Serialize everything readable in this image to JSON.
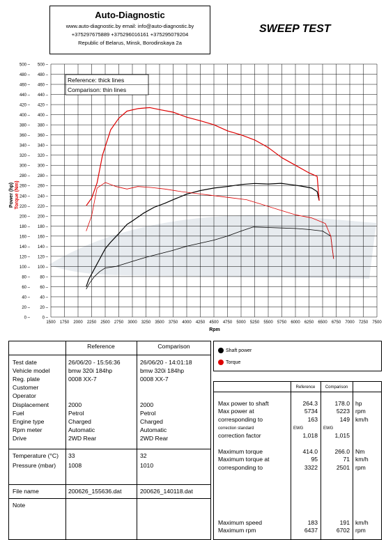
{
  "header": {
    "company": "Auto-Diagnostic",
    "web_email": "www.auto-diagnostic.by     email: info@auto-diagnostic.by",
    "phones": "+375297675889  +375296016161  +375295079204",
    "address": "Republic of Belarus, Minsk, Borodinskaya 2a",
    "test_title": "SWEEP TEST"
  },
  "chart_data": {
    "type": "line",
    "xlabel": "Rpm",
    "ylabel_power": "Power (hp)",
    "ylabel_torque": "Torque (Nm)",
    "xlim": [
      1500,
      7500
    ],
    "ylim": [
      0,
      500
    ],
    "x_ticks": [
      1500,
      1750,
      2000,
      2250,
      2500,
      2750,
      3000,
      3250,
      3500,
      3750,
      4000,
      4250,
      4500,
      4750,
      5000,
      5250,
      5500,
      5750,
      6000,
      6250,
      6500,
      6750,
      7000,
      7250,
      7500
    ],
    "y_ticks": [
      0,
      20,
      40,
      60,
      80,
      100,
      120,
      140,
      160,
      180,
      200,
      220,
      240,
      260,
      280,
      300,
      320,
      340,
      360,
      380,
      400,
      420,
      440,
      460,
      480,
      500
    ],
    "grid": true,
    "notes": [
      "Reference: thick lines",
      "Comparison: thin lines"
    ],
    "legend": [
      {
        "label": "Shaft power",
        "color": "#000000"
      },
      {
        "label": "Torque",
        "color": "#dd0000"
      }
    ],
    "series": [
      {
        "name": "Shaft power",
        "run": "Reference",
        "color": "#000000",
        "x": [
          2150,
          2200,
          2300,
          2400,
          2500,
          2600,
          2750,
          2900,
          3000,
          3200,
          3400,
          3600,
          3750,
          4000,
          4250,
          4500,
          4750,
          5000,
          5250,
          5500,
          5734,
          5900,
          6100,
          6300,
          6400,
          6437
        ],
        "y": [
          60,
          75,
          95,
          115,
          135,
          148,
          165,
          183,
          190,
          205,
          217,
          225,
          232,
          243,
          250,
          255,
          258,
          262,
          264,
          263,
          264.3,
          262,
          259,
          255,
          248,
          230
        ]
      },
      {
        "name": "Shaft power",
        "run": "Comparison",
        "color": "#000000",
        "x": [
          2150,
          2200,
          2300,
          2400,
          2500,
          2700,
          3000,
          3250,
          3500,
          3750,
          4000,
          4250,
          4500,
          4750,
          5000,
          5223,
          5500,
          5750,
          6000,
          6250,
          6500,
          6650,
          6702
        ],
        "y": [
          55,
          65,
          80,
          90,
          97,
          100,
          110,
          118,
          125,
          132,
          140,
          146,
          152,
          160,
          170,
          178,
          177,
          176,
          175,
          173,
          170,
          160,
          115
        ]
      },
      {
        "name": "Torque",
        "run": "Reference",
        "color": "#dd0000",
        "x": [
          2150,
          2250,
          2350,
          2450,
          2600,
          2750,
          2900,
          3100,
          3322,
          3500,
          3750,
          4000,
          4250,
          4500,
          4750,
          5000,
          5250,
          5500,
          5750,
          6000,
          6250,
          6400,
          6437
        ],
        "y": [
          220,
          235,
          265,
          320,
          370,
          393,
          407,
          412,
          414,
          410,
          405,
          395,
          388,
          380,
          368,
          360,
          350,
          335,
          315,
          300,
          285,
          278,
          230
        ]
      },
      {
        "name": "Torque",
        "run": "Comparison",
        "color": "#dd0000",
        "x": [
          2150,
          2250,
          2350,
          2501,
          2700,
          2900,
          3100,
          3350,
          3600,
          3900,
          4200,
          4500,
          4800,
          5100,
          5400,
          5700,
          6000,
          6300,
          6550,
          6650,
          6702
        ],
        "y": [
          170,
          200,
          255,
          266,
          258,
          253,
          258,
          256,
          253,
          248,
          244,
          240,
          236,
          232,
          222,
          212,
          202,
          196,
          185,
          160,
          115
        ]
      }
    ]
  },
  "table_left": {
    "col_ref": "Reference",
    "col_cmp": "Comparison",
    "rows1": [
      {
        "label": "Test date",
        "ref": "26/06/20 - 15:56:36",
        "cmp": "26/06/20 - 14:01:18"
      },
      {
        "label": "Vehicle model",
        "ref": "bmw 320i 184hp",
        "cmp": "bmw 320i 184hp"
      },
      {
        "label": "Reg. plate",
        "ref": "0008 XX-7",
        "cmp": "0008 XX-7"
      },
      {
        "label": "Customer",
        "ref": "",
        "cmp": ""
      },
      {
        "label": "Operator",
        "ref": "",
        "cmp": ""
      },
      {
        "label": "Displacement",
        "ref": "2000",
        "cmp": "2000"
      },
      {
        "label": "Fuel",
        "ref": "Petrol",
        "cmp": "Petrol"
      },
      {
        "label": "Engine type",
        "ref": "Charged",
        "cmp": "Charged"
      },
      {
        "label": "Rpm meter",
        "ref": "Automatic",
        "cmp": "Automatic"
      },
      {
        "label": "Drive",
        "ref": "2WD Rear",
        "cmp": "2WD Rear"
      }
    ],
    "rows2": [
      {
        "label": "Temperature (°C)",
        "ref": "33",
        "cmp": "32"
      },
      {
        "label": "Pressure (mbar)",
        "ref": "1008",
        "cmp": "1010"
      }
    ],
    "file": {
      "label": "File name",
      "ref": "200626_155636.dat",
      "cmp": "200626_140118.dat"
    },
    "note_label": "Note"
  },
  "table_right": {
    "col_ref": "Reference",
    "col_cmp": "Comparison",
    "rows": [
      {
        "label": "Max power to shaft",
        "ref": "264.3",
        "cmp": "178.0",
        "unit": "hp"
      },
      {
        "label": "Max power at",
        "ref": "5734",
        "cmp": "5223",
        "unit": "rpm"
      },
      {
        "label": "corresponding to",
        "ref": "163",
        "cmp": "149",
        "unit": "km/h"
      },
      {
        "label": "correction standard",
        "ref": "EWG",
        "cmp": "EWG",
        "unit": "",
        "small": true
      },
      {
        "label": "correction factor",
        "ref": "1,018",
        "cmp": "1,015",
        "unit": ""
      }
    ],
    "rows2": [
      {
        "label": "Maximum torque",
        "ref": "414.0",
        "cmp": "266.0",
        "unit": "Nm"
      },
      {
        "label": "Maximum torque at",
        "ref": "95",
        "cmp": "71",
        "unit": "km/h"
      },
      {
        "label": "corresponding to",
        "ref": "3322",
        "cmp": "2501",
        "unit": "rpm"
      }
    ],
    "rows3": [
      {
        "label": "Maximum speed",
        "ref": "183",
        "cmp": "191",
        "unit": "km/h"
      },
      {
        "label": "Maximum rpm",
        "ref": "6437",
        "cmp": "6702",
        "unit": "rpm"
      }
    ]
  }
}
